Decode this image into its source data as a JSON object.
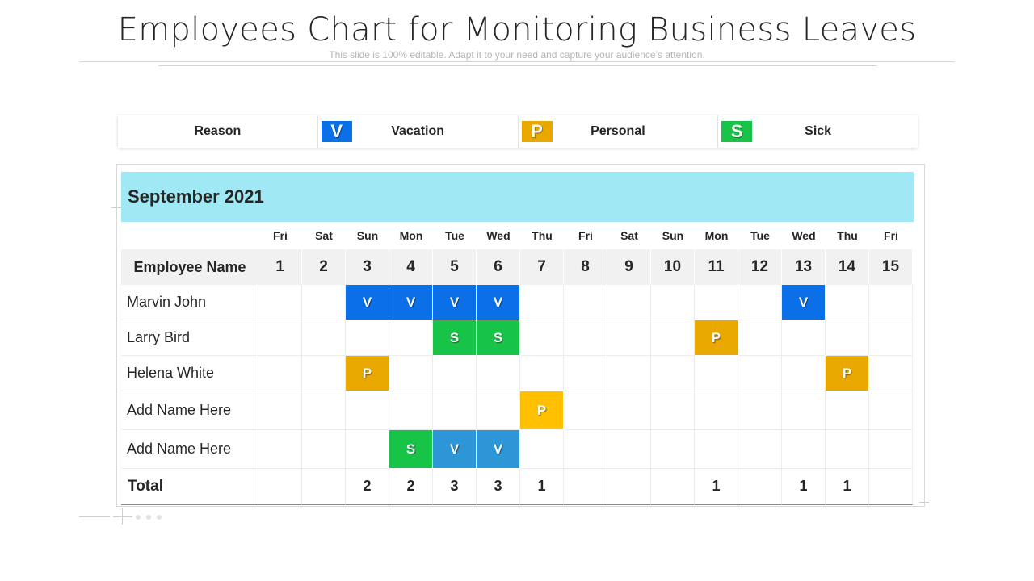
{
  "title": "Employees Chart for Monitoring Business Leaves",
  "subtitle": "This slide is 100% editable. Adapt it to your need and capture your audience’s attention.",
  "legend": {
    "reason_label": "Reason",
    "items": [
      {
        "code": "V",
        "label": "Vacation",
        "color": "#0b6fe8"
      },
      {
        "code": "P",
        "label": "Personal",
        "color": "#e9a800"
      },
      {
        "code": "S",
        "label": "Sick",
        "color": "#18c448"
      }
    ]
  },
  "calendar": {
    "month": "September 2021",
    "weekdays": [
      "Fri",
      "Sat",
      "Sun",
      "Mon",
      "Tue",
      "Wed",
      "Thu",
      "Fri",
      "Sat",
      "Sun",
      "Mon",
      "Tue",
      "Wed",
      "Thu",
      "Fri"
    ],
    "days": [
      "1",
      "2",
      "3",
      "4",
      "5",
      "6",
      "7",
      "8",
      "9",
      "10",
      "11",
      "12",
      "13",
      "14",
      "15"
    ],
    "employee_header": "Employee Name",
    "rows": [
      {
        "name": "Marvin John",
        "cells": [
          "",
          "",
          "V",
          "V",
          "V",
          "V",
          "",
          "",
          "",
          "",
          "",
          "",
          "V",
          "",
          ""
        ]
      },
      {
        "name": "Larry Bird",
        "cells": [
          "",
          "",
          "",
          "",
          "S",
          "S",
          "",
          "",
          "",
          "",
          "P",
          "",
          "",
          "",
          ""
        ]
      },
      {
        "name": "Helena White",
        "cells": [
          "",
          "",
          "P",
          "",
          "",
          "",
          "",
          "",
          "",
          "",
          "",
          "",
          "",
          "P",
          ""
        ]
      },
      {
        "name": "Add Name Here",
        "cells": [
          "",
          "",
          "",
          "",
          "",
          "",
          "P",
          "",
          "",
          "",
          "",
          "",
          "",
          "",
          ""
        ]
      },
      {
        "name": "Add Name Here",
        "cells": [
          "",
          "",
          "",
          "S",
          "V",
          "V",
          "",
          "",
          "",
          "",
          "",
          "",
          "",
          "",
          ""
        ]
      }
    ],
    "cell_colors": {
      "V": [
        "#0b6fe8",
        "#2c96d6"
      ],
      "P": [
        "#e9a800",
        "#ffc000"
      ],
      "S": [
        "#18c448"
      ]
    },
    "total_label": "Total",
    "totals": [
      "",
      "",
      "2",
      "2",
      "3",
      "3",
      "1",
      "",
      "",
      "",
      "1",
      "",
      "1",
      "1",
      ""
    ]
  }
}
